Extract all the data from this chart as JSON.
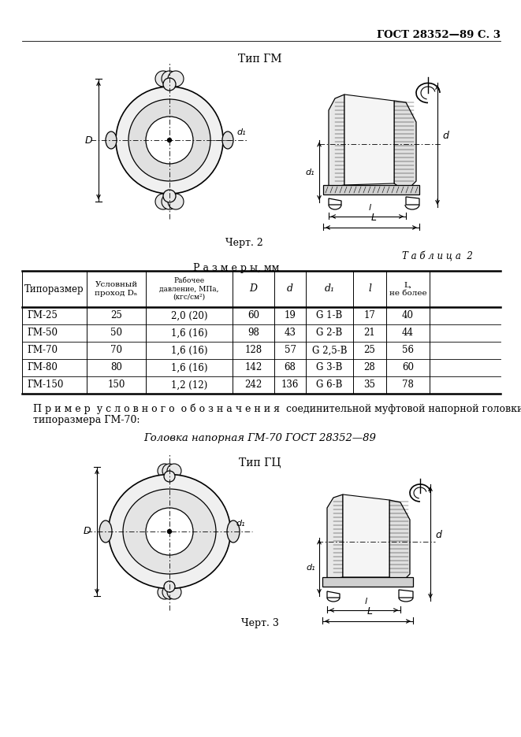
{
  "header": "ГОСТ 28352—89 С. 3",
  "section1_title": "Тип ГМ",
  "chert2_label": "Черт. 2",
  "table_title": "Т а б л и ц а  2",
  "table_subtitle": "Р а з м е р ы, мм",
  "table_rows": [
    [
      "ГМ-25",
      "25",
      "2,0 (20)",
      "60",
      "19",
      "G 1-В",
      "17",
      "40"
    ],
    [
      "ГМ-50",
      "50",
      "1,6 (16)",
      "98",
      "43",
      "G 2-В",
      "21",
      "44"
    ],
    [
      "ГМ-70",
      "70",
      "1,6 (16)",
      "128",
      "57",
      "G 2,5-В",
      "25",
      "56"
    ],
    [
      "ГМ-80",
      "80",
      "1,6 (16)",
      "142",
      "68",
      "G 3-В",
      "28",
      "60"
    ],
    [
      "ГМ-150",
      "150",
      "1,2 (12)",
      "242",
      "136",
      "G 6-В",
      "35",
      "78"
    ]
  ],
  "example_text1": "П р и м е р  у с л о в н о г о  о б о з н а ч е н и я  соединительной муфтовой напорной головки",
  "example_text2": "типоразмера ГМ-70:",
  "example_italic": "Головка напорная ГМ-70 ГОСТ 28352—89",
  "section2_title": "Тип ГЦ",
  "chert3_label": "Черт. 3",
  "bg_color": "#ffffff",
  "text_color": "#000000"
}
